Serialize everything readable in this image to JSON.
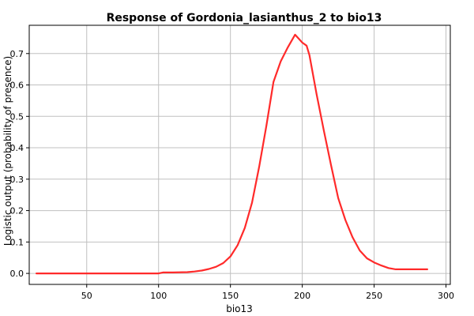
{
  "chart_data": {
    "type": "line",
    "title": "Response of Gordonia_lasianthus_2 to bio13",
    "xlabel": "bio13",
    "ylabel": "Logistic output (probability of presence)",
    "xlim": [
      10,
      303
    ],
    "ylim": [
      -0.035,
      0.79
    ],
    "x_ticks": [
      50,
      100,
      150,
      200,
      250,
      300
    ],
    "y_ticks": [
      0.0,
      0.1,
      0.2,
      0.3,
      0.4,
      0.5,
      0.6,
      0.7
    ],
    "x_tick_labels": [
      "50",
      "100",
      "150",
      "200",
      "250",
      "300"
    ],
    "y_tick_labels": [
      "0.0",
      "0.1",
      "0.2",
      "0.3",
      "0.4",
      "0.5",
      "0.6",
      "0.7"
    ],
    "grid": true,
    "series": [
      {
        "color": "#ff2a2a",
        "x": [
          15,
          50,
          100,
          103,
          110,
          120,
          125,
          130,
          135,
          140,
          145,
          150,
          155,
          160,
          165,
          170,
          175,
          180,
          185,
          190,
          195,
          198,
          200,
          203,
          205,
          210,
          215,
          220,
          225,
          230,
          235,
          240,
          245,
          250,
          255,
          260,
          265,
          270,
          280,
          287
        ],
        "y": [
          0.0,
          0.0,
          0.0,
          0.003,
          0.003,
          0.004,
          0.006,
          0.009,
          0.014,
          0.021,
          0.033,
          0.054,
          0.09,
          0.145,
          0.225,
          0.34,
          0.47,
          0.61,
          0.675,
          0.72,
          0.76,
          0.745,
          0.735,
          0.725,
          0.695,
          0.57,
          0.455,
          0.345,
          0.24,
          0.17,
          0.115,
          0.073,
          0.048,
          0.035,
          0.025,
          0.017,
          0.013,
          0.013,
          0.013,
          0.013
        ]
      }
    ]
  }
}
